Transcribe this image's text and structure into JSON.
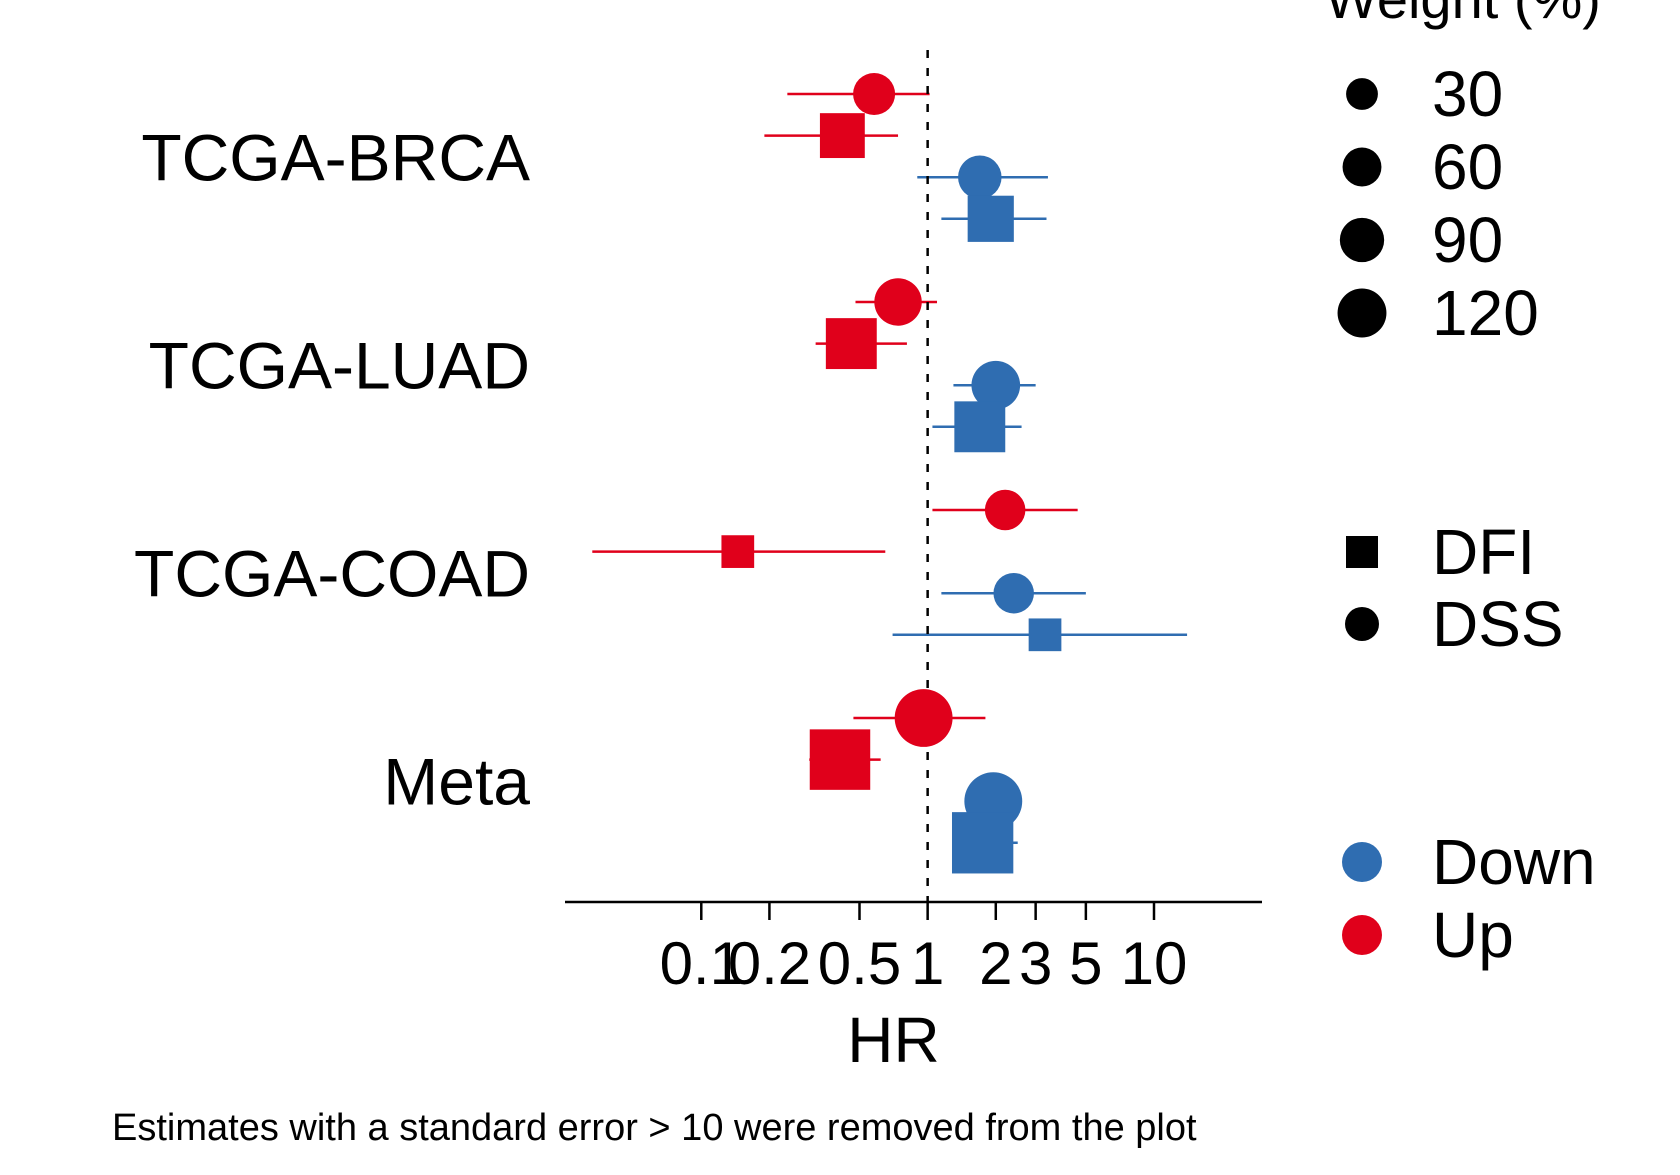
{
  "chart_data": {
    "type": "scatter",
    "subtype": "forest-plot",
    "xlabel": "HR",
    "x_scale": "log",
    "x_ticks": [
      0.1,
      0.2,
      0.5,
      1,
      2,
      3,
      5,
      10
    ],
    "x_tick_labels": [
      "0.1",
      "0.2",
      "0.5",
      "1",
      "2",
      "3",
      "5",
      "10"
    ],
    "xlim": [
      0.025,
      30
    ],
    "reference_line": 1,
    "groups": [
      "TCGA-BRCA",
      "TCGA-LUAD",
      "TCGA-COAD",
      "Meta"
    ],
    "rows": [
      {
        "group": "TCGA-BRCA",
        "direction": "Up",
        "endpoint": "DSS",
        "hr": 0.58,
        "lo": 0.24,
        "hi": 1.02,
        "weight": 40
      },
      {
        "group": "TCGA-BRCA",
        "direction": "Up",
        "endpoint": "DFI",
        "hr": 0.42,
        "lo": 0.19,
        "hi": 0.74,
        "weight": 50
      },
      {
        "group": "TCGA-BRCA",
        "direction": "Down",
        "endpoint": "DSS",
        "hr": 1.7,
        "lo": 0.9,
        "hi": 3.4,
        "weight": 45
      },
      {
        "group": "TCGA-BRCA",
        "direction": "Down",
        "endpoint": "DFI",
        "hr": 1.9,
        "lo": 1.15,
        "hi": 3.35,
        "weight": 55
      },
      {
        "group": "TCGA-LUAD",
        "direction": "Up",
        "endpoint": "DSS",
        "hr": 0.74,
        "lo": 0.48,
        "hi": 1.1,
        "weight": 60
      },
      {
        "group": "TCGA-LUAD",
        "direction": "Up",
        "endpoint": "DFI",
        "hr": 0.46,
        "lo": 0.32,
        "hi": 0.81,
        "weight": 75
      },
      {
        "group": "TCGA-LUAD",
        "direction": "Down",
        "endpoint": "DSS",
        "hr": 2.0,
        "lo": 1.3,
        "hi": 3.0,
        "weight": 65
      },
      {
        "group": "TCGA-LUAD",
        "direction": "Down",
        "endpoint": "DFI",
        "hr": 1.7,
        "lo": 1.05,
        "hi": 2.6,
        "weight": 75
      },
      {
        "group": "TCGA-COAD",
        "direction": "Up",
        "endpoint": "DSS",
        "hr": 2.2,
        "lo": 1.05,
        "hi": 4.6,
        "weight": 35
      },
      {
        "group": "TCGA-COAD",
        "direction": "Up",
        "endpoint": "DFI",
        "hr": 0.145,
        "lo": 0.033,
        "hi": 0.65,
        "weight": 15
      },
      {
        "group": "TCGA-COAD",
        "direction": "Down",
        "endpoint": "DSS",
        "hr": 2.4,
        "lo": 1.15,
        "hi": 5.0,
        "weight": 35
      },
      {
        "group": "TCGA-COAD",
        "direction": "Down",
        "endpoint": "DFI",
        "hr": 3.3,
        "lo": 0.7,
        "hi": 14.0,
        "weight": 15
      },
      {
        "group": "Meta",
        "direction": "Up",
        "endpoint": "DSS",
        "hr": 0.96,
        "lo": 0.47,
        "hi": 1.8,
        "weight": 110
      },
      {
        "group": "Meta",
        "direction": "Up",
        "endpoint": "DFI",
        "hr": 0.41,
        "lo": 0.3,
        "hi": 0.62,
        "weight": 125
      },
      {
        "group": "Meta",
        "direction": "Down",
        "endpoint": "DSS",
        "hr": 1.95,
        "lo": 1.5,
        "hi": 2.6,
        "weight": 110
      },
      {
        "group": "Meta",
        "direction": "Down",
        "endpoint": "DFI",
        "hr": 1.75,
        "lo": 1.35,
        "hi": 2.5,
        "weight": 130
      }
    ],
    "legend": {
      "position": "right",
      "size_title": "Weight (%)",
      "size_values": [
        30,
        60,
        90,
        120
      ],
      "shape_entries": [
        {
          "label": "DFI",
          "shape": "square"
        },
        {
          "label": "DSS",
          "shape": "circle"
        }
      ],
      "color_entries": [
        {
          "label": "Down",
          "color": "#2f6db1"
        },
        {
          "label": "Up",
          "color": "#e0001b"
        }
      ]
    },
    "caption": "Estimates with a standard error > 10 were removed from the plot",
    "grid": false
  }
}
